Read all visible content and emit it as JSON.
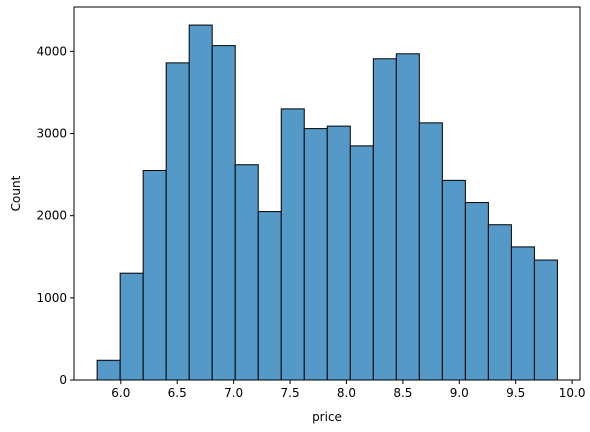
{
  "chart_data": {
    "type": "bar",
    "subtype": "histogram",
    "title": "",
    "xlabel": "price",
    "ylabel": "Count",
    "bin_edges": [
      5.79,
      5.994,
      6.198,
      6.402,
      6.606,
      6.81,
      7.014,
      7.218,
      7.422,
      7.626,
      7.83,
      8.034,
      8.238,
      8.442,
      8.646,
      8.85,
      9.054,
      9.258,
      9.462,
      9.666,
      9.87
    ],
    "counts": [
      240,
      1300,
      2550,
      3860,
      4320,
      4070,
      2620,
      2050,
      3300,
      3060,
      3090,
      2850,
      3910,
      3970,
      3130,
      2430,
      2160,
      1890,
      1620,
      1460
    ],
    "xlim": [
      5.585,
      10.07
    ],
    "ylim": [
      0,
      4540
    ],
    "xticks": [
      6.0,
      6.5,
      7.0,
      7.5,
      8.0,
      8.5,
      9.0,
      9.5,
      10.0
    ],
    "xtick_labels": [
      "6.0",
      "6.5",
      "7.0",
      "7.5",
      "8.0",
      "8.5",
      "9.0",
      "9.5",
      "10.0"
    ],
    "yticks": [
      0,
      1000,
      2000,
      3000,
      4000
    ],
    "ytick_labels": [
      "0",
      "1000",
      "2000",
      "3000",
      "4000"
    ],
    "grid": false,
    "colors": {
      "bar_fill": "#5499c7",
      "bar_edge": "#000000",
      "axis": "#000000"
    }
  }
}
